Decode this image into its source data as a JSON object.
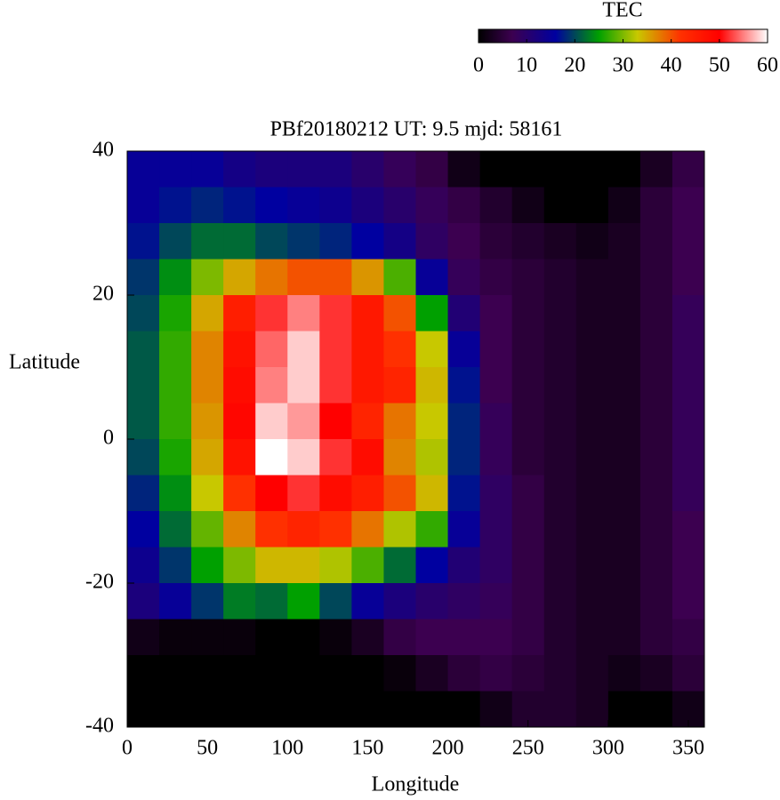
{
  "chart_data": {
    "type": "heatmap",
    "title": "PBf20180212  UT: 9.5  mjd: 58161",
    "x_label": "Longitude",
    "y_label": "Latitude",
    "xlim": [
      0,
      360
    ],
    "ylim": [
      -40,
      40
    ],
    "xticks": [
      0,
      50,
      100,
      150,
      200,
      250,
      300,
      350
    ],
    "yticks": [
      -40,
      -20,
      0,
      20,
      40
    ],
    "xbins": [
      0,
      20,
      40,
      60,
      80,
      100,
      120,
      140,
      160,
      180,
      200,
      220,
      240,
      260,
      280,
      300,
      320,
      340,
      360
    ],
    "ybins": [
      40,
      35,
      30,
      25,
      20,
      15,
      10,
      5,
      0,
      -5,
      -10,
      -15,
      -20,
      -25,
      -30,
      -35,
      -40
    ],
    "values": [
      [
        15,
        15,
        15,
        13,
        12,
        12,
        12,
        10,
        8,
        6,
        2,
        0,
        0,
        0,
        0,
        0,
        3,
        6
      ],
      [
        15,
        17,
        18,
        17,
        16,
        15,
        14,
        12,
        10,
        8,
        6,
        4,
        2,
        0,
        0,
        2,
        5,
        7
      ],
      [
        17,
        20,
        22,
        22,
        20,
        19,
        18,
        16,
        13,
        9,
        7,
        5,
        4,
        3,
        2,
        3,
        5,
        7
      ],
      [
        19,
        24,
        30,
        35,
        38,
        40,
        40,
        36,
        28,
        15,
        8,
        6,
        5,
        4,
        3,
        3,
        5,
        7
      ],
      [
        20,
        26,
        35,
        45,
        52,
        55,
        52,
        46,
        40,
        25,
        11,
        7,
        5,
        4,
        3,
        3,
        5,
        8
      ],
      [
        21,
        27,
        37,
        47,
        54,
        58,
        52,
        46,
        42,
        33,
        15,
        7,
        5,
        4,
        3,
        3,
        5,
        8
      ],
      [
        21,
        27,
        37,
        48,
        55,
        58,
        52,
        46,
        44,
        34,
        17,
        7,
        5,
        4,
        3,
        3,
        5,
        8
      ],
      [
        21,
        27,
        36,
        49,
        58,
        56,
        50,
        44,
        38,
        33,
        18,
        8,
        5,
        4,
        3,
        3,
        5,
        8
      ],
      [
        20,
        26,
        35,
        47,
        60,
        58,
        52,
        48,
        37,
        32,
        18,
        8,
        5,
        4,
        3,
        3,
        5,
        8
      ],
      [
        18,
        24,
        33,
        42,
        50,
        52,
        48,
        45,
        40,
        34,
        17,
        9,
        6,
        4,
        3,
        3,
        5,
        8
      ],
      [
        16,
        22,
        29,
        37,
        42,
        44,
        42,
        38,
        32,
        27,
        15,
        9,
        6,
        4,
        3,
        3,
        5,
        7
      ],
      [
        14,
        19,
        25,
        30,
        34,
        34,
        32,
        28,
        22,
        16,
        11,
        9,
        6,
        4,
        3,
        3,
        5,
        7
      ],
      [
        12,
        15,
        19,
        23,
        22,
        25,
        20,
        15,
        12,
        10,
        9,
        8,
        6,
        4,
        3,
        3,
        5,
        7
      ],
      [
        2,
        1,
        1,
        1,
        0,
        0,
        1,
        3,
        6,
        7,
        7,
        7,
        6,
        4,
        3,
        3,
        5,
        6
      ],
      [
        0,
        0,
        0,
        0,
        0,
        0,
        0,
        0,
        1,
        3,
        5,
        6,
        5,
        4,
        3,
        2,
        3,
        5
      ],
      [
        0,
        0,
        0,
        0,
        0,
        0,
        0,
        0,
        0,
        0,
        0,
        2,
        4,
        4,
        3,
        0,
        0,
        2
      ]
    ],
    "colorbar": {
      "title": "TEC",
      "lim": [
        0,
        60
      ],
      "ticks": [
        0,
        10,
        20,
        30,
        40,
        50,
        60
      ],
      "colorscale": [
        [
          0,
          "#000000"
        ],
        [
          7,
          "#3c0050"
        ],
        [
          16,
          "#0000a0"
        ],
        [
          25,
          "#00a000"
        ],
        [
          33,
          "#c8c800"
        ],
        [
          42,
          "#ff3000"
        ],
        [
          50,
          "#ff0000"
        ],
        [
          60,
          "#ffffff"
        ]
      ]
    }
  }
}
